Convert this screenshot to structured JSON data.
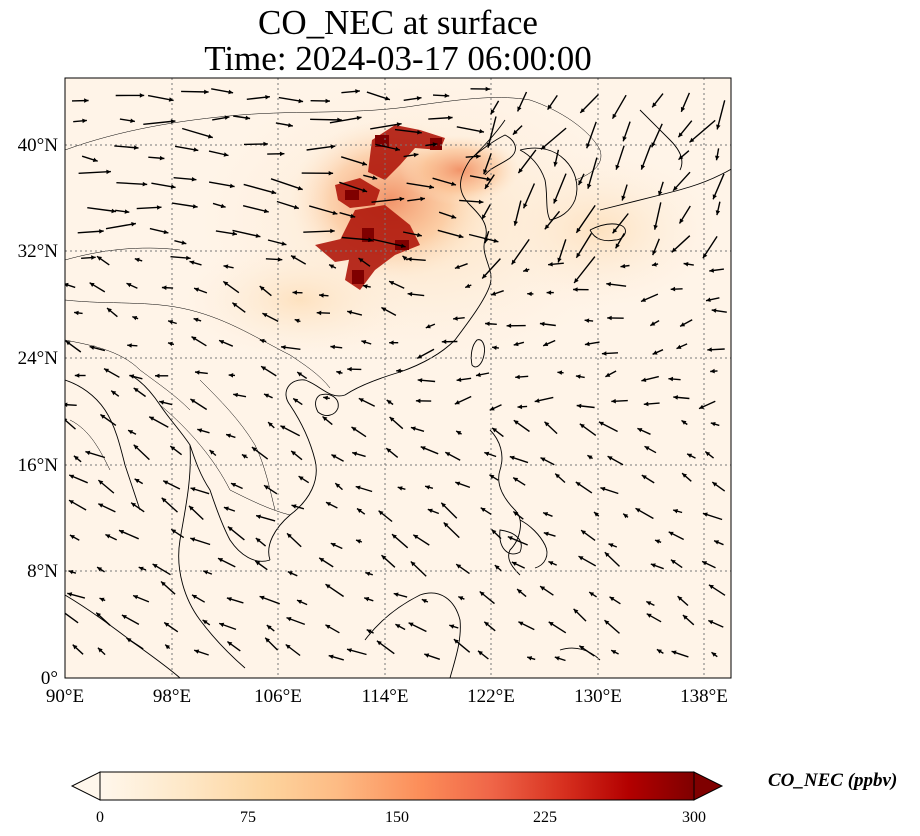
{
  "title": {
    "line1": "CO_NEC at surface",
    "line2": "Time: 2024-03-17 06:00:00"
  },
  "map": {
    "type": "geographic-map",
    "projection": "PlateCarree",
    "lon_range_deg": [
      90,
      140
    ],
    "lat_range_deg": [
      0,
      45
    ],
    "gridlines": true,
    "gridline_style": "dotted gray",
    "lon_ticks": [
      "90°E",
      "98°E",
      "106°E",
      "114°E",
      "122°E",
      "130°E",
      "138°E"
    ],
    "lat_ticks": [
      "0°",
      "8°N",
      "16°N",
      "24°N",
      "32°N",
      "40°N"
    ],
    "field": "CO_NEC concentration shaded, wind vectors overlaid",
    "high_concentration_region": "North China Plain to central China, around 110–118°E, 30–42°N"
  },
  "colorbar": {
    "label": "CO_NEC (ppbv)",
    "ticks": [
      "0",
      "75",
      "150",
      "225",
      "300"
    ],
    "min": 0,
    "max": 300,
    "extend": "both",
    "colormap": "OrRd",
    "colors": [
      "#fff7ec",
      "#fee8c8",
      "#fdd49e",
      "#fdbb84",
      "#fc8d59",
      "#ef6548",
      "#d7301f",
      "#b30000",
      "#7f0000"
    ]
  }
}
